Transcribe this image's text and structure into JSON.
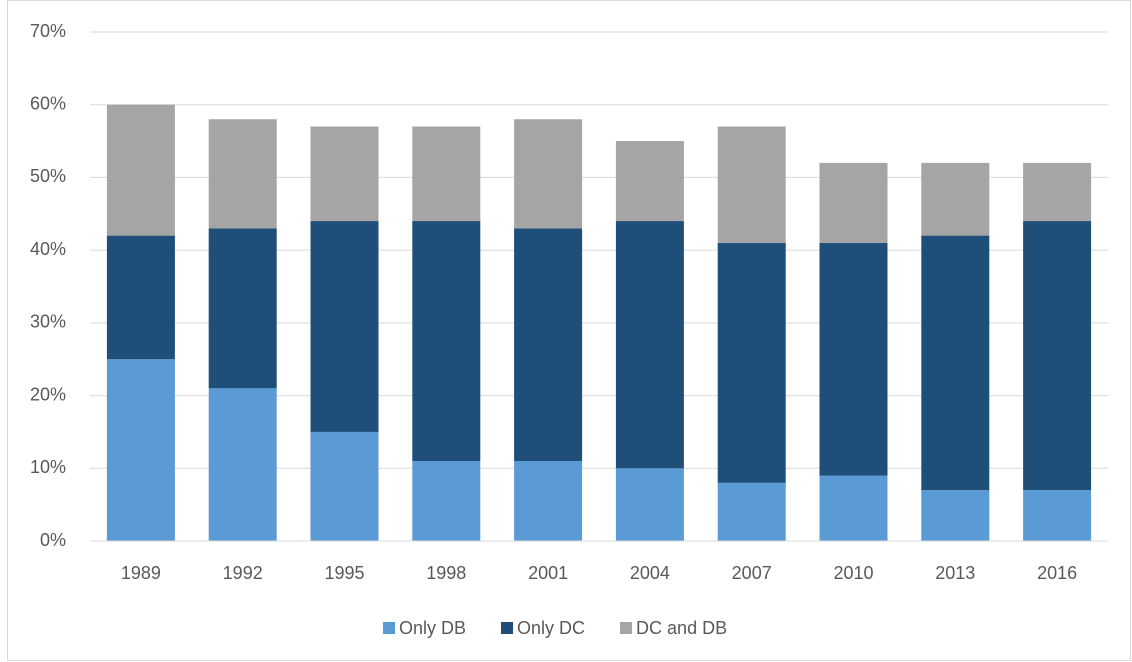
{
  "chart_data": {
    "type": "stacked_bar",
    "categories": [
      "1989",
      "1992",
      "1995",
      "1998",
      "2001",
      "2004",
      "2007",
      "2010",
      "2013",
      "2016"
    ],
    "series": [
      {
        "name": "Only DB",
        "color": "#5b9bd5",
        "values": [
          25,
          21,
          15,
          11,
          11,
          10,
          8,
          9,
          7,
          7
        ]
      },
      {
        "name": "Only DC",
        "color": "#1f4e79",
        "values": [
          17,
          22,
          29,
          33,
          32,
          34,
          33,
          32,
          35,
          37
        ]
      },
      {
        "name": "DC and DB",
        "color": "#a5a5a5",
        "values": [
          18,
          15,
          13,
          13,
          15,
          11,
          16,
          11,
          10,
          8
        ]
      }
    ],
    "ylim": [
      0,
      70
    ],
    "yticks": [
      {
        "value": 0,
        "label": "0%"
      },
      {
        "value": 10,
        "label": "10%"
      },
      {
        "value": 20,
        "label": "20%"
      },
      {
        "value": 30,
        "label": "30%"
      },
      {
        "value": 40,
        "label": "40%"
      },
      {
        "value": 50,
        "label": "50%"
      },
      {
        "value": 60,
        "label": "60%"
      },
      {
        "value": 70,
        "label": "70%"
      }
    ],
    "grid": true,
    "legend": "bottom"
  }
}
